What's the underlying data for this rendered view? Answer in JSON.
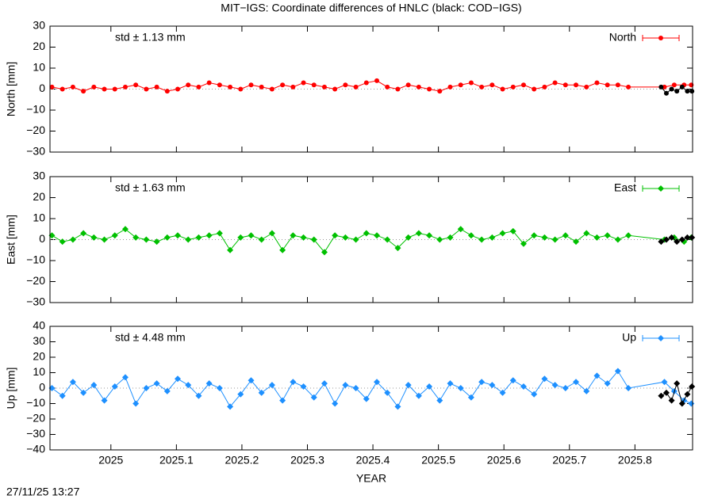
{
  "title": "MIT−IGS: Coordinate differences of HNLC (black: COD−IGS)",
  "timestamp": "27/11/25 13:27",
  "chart_data": [
    {
      "type": "line",
      "ylabel": "North [mm]",
      "annotation": "std ± 1.13 mm",
      "legend": "upper right",
      "zero_line": true,
      "xlim": [
        2024.907,
        2025.888
      ],
      "xticks": [
        2025,
        2025.1,
        2025.2,
        2025.3,
        2025.4,
        2025.5,
        2025.6,
        2025.7,
        2025.8
      ],
      "ylim": [
        -30,
        30
      ],
      "yticks": [
        {
          "value": -30,
          "label": "−30"
        },
        {
          "value": -20,
          "label": "−20"
        },
        {
          "value": -10,
          "label": "−10"
        },
        0,
        10,
        20,
        30
      ],
      "series": [
        {
          "name": "North",
          "color": "#ff0000",
          "marker": "circle",
          "x": [
            2024.91,
            2024.926,
            2024.942,
            2024.958,
            2024.974,
            2024.99,
            2025.006,
            2025.022,
            2025.038,
            2025.054,
            2025.07,
            2025.086,
            2025.102,
            2025.118,
            2025.134,
            2025.15,
            2025.166,
            2025.182,
            2025.198,
            2025.214,
            2025.23,
            2025.246,
            2025.262,
            2025.278,
            2025.294,
            2025.31,
            2025.326,
            2025.342,
            2025.358,
            2025.374,
            2025.39,
            2025.406,
            2025.422,
            2025.438,
            2025.454,
            2025.47,
            2025.486,
            2025.502,
            2025.518,
            2025.534,
            2025.55,
            2025.566,
            2025.582,
            2025.598,
            2025.614,
            2025.63,
            2025.646,
            2025.662,
            2025.678,
            2025.694,
            2025.71,
            2025.726,
            2025.742,
            2025.758,
            2025.774,
            2025.79,
            2025.845,
            2025.86,
            2025.875,
            2025.886
          ],
          "values": [
            1,
            0,
            1,
            -1,
            1,
            0,
            0,
            1,
            2,
            0,
            1,
            -1,
            0,
            2,
            1,
            3,
            2,
            1,
            0,
            2,
            1,
            0,
            2,
            1,
            3,
            2,
            1,
            0,
            2,
            1,
            3,
            4,
            1,
            0,
            2,
            1,
            0,
            -1,
            1,
            2,
            3,
            1,
            2,
            0,
            1,
            2,
            0,
            1,
            3,
            2,
            2,
            1,
            3,
            2,
            2,
            1,
            1,
            2,
            2,
            2
          ]
        },
        {
          "color": "#000000",
          "marker": "circle",
          "x": [
            2025.84,
            2025.848,
            2025.856,
            2025.864,
            2025.872,
            2025.88,
            2025.887
          ],
          "values": [
            1,
            -2,
            0,
            -1,
            1,
            -1,
            -1
          ]
        }
      ]
    },
    {
      "type": "line",
      "ylabel": "East [mm]",
      "annotation": "std ± 1.63 mm",
      "legend": "upper right",
      "zero_line": true,
      "xlim": [
        2024.907,
        2025.888
      ],
      "xticks": [
        2025,
        2025.1,
        2025.2,
        2025.3,
        2025.4,
        2025.5,
        2025.6,
        2025.7,
        2025.8
      ],
      "ylim": [
        -30,
        30
      ],
      "yticks": [
        {
          "value": -30,
          "label": "−30"
        },
        {
          "value": -20,
          "label": "−20"
        },
        {
          "value": -10,
          "label": "−10"
        },
        0,
        10,
        20,
        30
      ],
      "series": [
        {
          "name": "East",
          "color": "#00c000",
          "marker": "diamond",
          "x": [
            2024.91,
            2024.926,
            2024.942,
            2024.958,
            2024.974,
            2024.99,
            2025.006,
            2025.022,
            2025.038,
            2025.054,
            2025.07,
            2025.086,
            2025.102,
            2025.118,
            2025.134,
            2025.15,
            2025.166,
            2025.182,
            2025.198,
            2025.214,
            2025.23,
            2025.246,
            2025.262,
            2025.278,
            2025.294,
            2025.31,
            2025.326,
            2025.342,
            2025.358,
            2025.374,
            2025.39,
            2025.406,
            2025.422,
            2025.438,
            2025.454,
            2025.47,
            2025.486,
            2025.502,
            2025.518,
            2025.534,
            2025.55,
            2025.566,
            2025.582,
            2025.598,
            2025.614,
            2025.63,
            2025.646,
            2025.662,
            2025.678,
            2025.694,
            2025.71,
            2025.726,
            2025.742,
            2025.758,
            2025.774,
            2025.79,
            2025.845,
            2025.86,
            2025.875,
            2025.886
          ],
          "values": [
            2,
            -1,
            0,
            3,
            1,
            0,
            2,
            5,
            1,
            0,
            -1,
            1,
            2,
            0,
            1,
            2,
            3,
            -5,
            1,
            2,
            0,
            3,
            -5,
            2,
            1,
            0,
            -6,
            2,
            1,
            0,
            3,
            2,
            0,
            -4,
            1,
            3,
            2,
            0,
            1,
            5,
            2,
            0,
            1,
            3,
            4,
            -2,
            2,
            1,
            0,
            2,
            -1,
            3,
            1,
            2,
            0,
            2,
            0,
            1,
            -1,
            1
          ]
        },
        {
          "color": "#000000",
          "marker": "diamond",
          "x": [
            2025.84,
            2025.848,
            2025.856,
            2025.864,
            2025.872,
            2025.88,
            2025.887
          ],
          "values": [
            -1,
            0,
            1,
            -1,
            0,
            1,
            1
          ]
        }
      ]
    },
    {
      "type": "line",
      "ylabel": "Up [mm]",
      "annotation": "std ± 4.48 mm",
      "legend": "upper right",
      "zero_line": true,
      "xlabel": "YEAR",
      "xlim": [
        2024.907,
        2025.888
      ],
      "xticks": [
        2025,
        2025.1,
        2025.2,
        2025.3,
        2025.4,
        2025.5,
        2025.6,
        2025.7,
        2025.8
      ],
      "ylim": [
        -40,
        40
      ],
      "yticks": [
        {
          "value": -40,
          "label": "−40"
        },
        {
          "value": -30,
          "label": "−30"
        },
        {
          "value": -20,
          "label": "−20"
        },
        {
          "value": -10,
          "label": "−10"
        },
        0,
        10,
        20,
        30,
        40
      ],
      "series": [
        {
          "name": "Up",
          "color": "#1e90ff",
          "marker": "diamond",
          "x": [
            2024.91,
            2024.926,
            2024.942,
            2024.958,
            2024.974,
            2024.99,
            2025.006,
            2025.022,
            2025.038,
            2025.054,
            2025.07,
            2025.086,
            2025.102,
            2025.118,
            2025.134,
            2025.15,
            2025.166,
            2025.182,
            2025.198,
            2025.214,
            2025.23,
            2025.246,
            2025.262,
            2025.278,
            2025.294,
            2025.31,
            2025.326,
            2025.342,
            2025.358,
            2025.374,
            2025.39,
            2025.406,
            2025.422,
            2025.438,
            2025.454,
            2025.47,
            2025.486,
            2025.502,
            2025.518,
            2025.534,
            2025.55,
            2025.566,
            2025.582,
            2025.598,
            2025.614,
            2025.63,
            2025.646,
            2025.662,
            2025.678,
            2025.694,
            2025.71,
            2025.726,
            2025.742,
            2025.758,
            2025.774,
            2025.79,
            2025.845,
            2025.86,
            2025.875,
            2025.886
          ],
          "values": [
            0,
            -5,
            4,
            -3,
            2,
            -8,
            1,
            7,
            -10,
            0,
            3,
            -2,
            6,
            2,
            -5,
            3,
            0,
            -12,
            -4,
            5,
            -3,
            2,
            -8,
            4,
            1,
            -6,
            3,
            -10,
            2,
            0,
            -7,
            4,
            -3,
            -12,
            2,
            -5,
            1,
            -8,
            3,
            0,
            -6,
            4,
            2,
            -3,
            5,
            1,
            -4,
            6,
            2,
            0,
            4,
            -2,
            8,
            3,
            11,
            0,
            4,
            -2,
            -8,
            -10
          ]
        },
        {
          "color": "#000000",
          "marker": "diamond",
          "x": [
            2025.84,
            2025.848,
            2025.856,
            2025.864,
            2025.872,
            2025.88,
            2025.887
          ],
          "values": [
            -5,
            -3,
            -8,
            3,
            -10,
            -4,
            1
          ]
        }
      ]
    }
  ]
}
